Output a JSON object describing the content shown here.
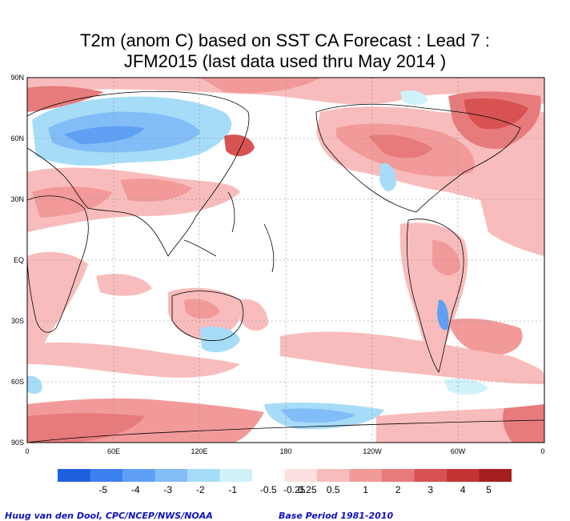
{
  "title": {
    "line1": "T2m (anom C) based on SST CA Forecast : Lead 7 :",
    "line2": "JFM2015 (last data used thru May 2014 )"
  },
  "map": {
    "lat_ticks": [
      "90N",
      "60N",
      "30N",
      "EQ",
      "30S",
      "60S",
      "90S"
    ],
    "lon_ticks": [
      "0",
      "60E",
      "120E",
      "180",
      "120W",
      "60W",
      "0"
    ]
  },
  "legend": {
    "colors": [
      "#1e5fe0",
      "#3c7ff0",
      "#5fa0f5",
      "#82bdf8",
      "#a6dcf7",
      "#cff2fb",
      "#ffffff",
      "#fde0e0",
      "#f8bcbc",
      "#f29a9a",
      "#e77b7b",
      "#d85252",
      "#c53434",
      "#a51e1e"
    ],
    "labels": [
      "-5",
      "-4",
      "-3",
      "-2",
      "-1",
      "-0.5",
      "-0.25",
      "0.25",
      "0.5",
      "1",
      "2",
      "3",
      "4",
      "5"
    ]
  },
  "footer": {
    "credit": "Huug van den Dool, CPC/NCEP/NWS/NOAA",
    "base": "Base Period 1981-2010"
  }
}
